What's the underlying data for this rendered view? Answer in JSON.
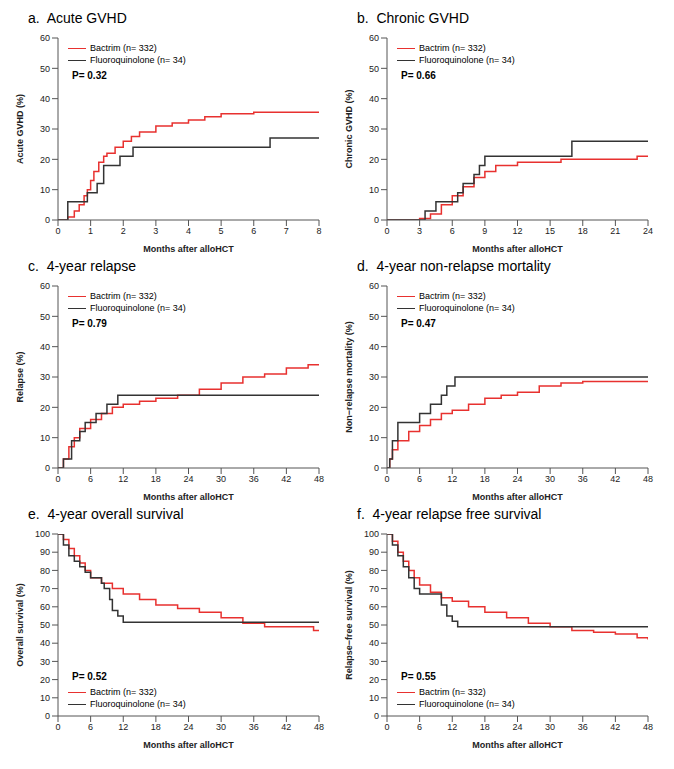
{
  "chart_data": [
    {
      "type": "line",
      "title": "a.  Acute GVHD",
      "xlabel": "Months after alloHCT",
      "ylabel": "Acute GVHD (%)",
      "xlim": [
        0,
        8
      ],
      "xticks": [
        0,
        1,
        2,
        3,
        4,
        5,
        6,
        7,
        8
      ],
      "ylim": [
        0,
        60
      ],
      "yticks": [
        0,
        10,
        20,
        30,
        40,
        50,
        60
      ],
      "grid": false,
      "legend": "upper left",
      "annotation": "P= 0.32",
      "series": [
        {
          "name": "Bactrim (n= 332)",
          "color": "#e8312f",
          "line_style": "step",
          "marker": "none",
          "x": [
            0,
            0.3,
            0.5,
            0.65,
            0.8,
            0.9,
            1,
            1.1,
            1.25,
            1.4,
            1.5,
            1.75,
            2,
            2.25,
            2.5,
            3,
            3.5,
            4,
            4.5,
            5,
            6,
            8
          ],
          "values": [
            0,
            1,
            3,
            5,
            8,
            10,
            13,
            16,
            19,
            21,
            22,
            24,
            26,
            27.5,
            29,
            31,
            32,
            33,
            34,
            35,
            35.5,
            35.5
          ]
        },
        {
          "name": "Fluoroquinolone (n= 34)",
          "color": "#333333",
          "line_style": "step",
          "marker": "none",
          "x": [
            0,
            0.3,
            0.9,
            1.2,
            1.4,
            1.9,
            2.3,
            6.5,
            8
          ],
          "values": [
            0,
            6,
            9,
            12,
            18,
            21,
            24,
            27,
            27
          ]
        }
      ]
    },
    {
      "type": "line",
      "title": "b.  Chronic GVHD",
      "xlabel": "Months after alloHCT",
      "ylabel": "Chronic GVHD (%)",
      "xlim": [
        0,
        24
      ],
      "xticks": [
        0,
        3,
        6,
        9,
        12,
        15,
        18,
        21,
        24
      ],
      "ylim": [
        0,
        60
      ],
      "yticks": [
        0,
        10,
        20,
        30,
        40,
        50,
        60
      ],
      "grid": false,
      "legend": "upper left",
      "annotation": "P= 0.66",
      "series": [
        {
          "name": "Bactrim (n= 332)",
          "color": "#e8312f",
          "line_style": "step",
          "marker": "none",
          "x": [
            0,
            3,
            4,
            5,
            6,
            7,
            8,
            9,
            10,
            12,
            16,
            23,
            24
          ],
          "values": [
            0,
            0.5,
            2,
            5,
            8,
            11,
            14,
            16,
            18,
            19,
            20,
            21,
            21
          ]
        },
        {
          "name": "Fluoroquinolone (n= 34)",
          "color": "#333333",
          "line_style": "step",
          "marker": "none",
          "x": [
            0,
            3.5,
            4.5,
            6.5,
            7,
            8,
            8.5,
            9,
            17,
            24
          ],
          "values": [
            0,
            3,
            6,
            9,
            12,
            15,
            18,
            21,
            26,
            26
          ]
        }
      ]
    },
    {
      "type": "line",
      "title": "c.  4-year relapse",
      "xlabel": "Months after alloHCT",
      "ylabel": "Relapse (%)",
      "xlim": [
        0,
        48
      ],
      "xticks": [
        0,
        6,
        12,
        18,
        24,
        30,
        36,
        42,
        48
      ],
      "ylim": [
        0,
        60
      ],
      "yticks": [
        0,
        10,
        20,
        30,
        40,
        50,
        60
      ],
      "grid": false,
      "legend": "upper left",
      "annotation": "P= 0.79",
      "series": [
        {
          "name": "Bactrim (n= 332)",
          "color": "#e8312f",
          "line_style": "step",
          "marker": "none",
          "x": [
            0,
            1,
            2,
            3,
            4,
            6,
            8,
            10,
            12,
            15,
            18,
            22,
            26,
            30,
            34,
            38,
            42,
            46,
            48
          ],
          "values": [
            0,
            3,
            7,
            10,
            13,
            16,
            18,
            20,
            21,
            22,
            23,
            24,
            26,
            28,
            30,
            31,
            33,
            34,
            34
          ]
        },
        {
          "name": "Fluoroquinolone (n= 34)",
          "color": "#333333",
          "line_style": "step",
          "marker": "none",
          "x": [
            0,
            1,
            2.5,
            4,
            5,
            7,
            9,
            11,
            48
          ],
          "values": [
            0,
            3,
            9,
            12,
            15,
            18,
            21,
            24,
            24
          ]
        }
      ]
    },
    {
      "type": "line",
      "title": "d.  4-year non-relapse mortality",
      "xlabel": "Months after alloHCT",
      "ylabel": "Non−relapse mortality (%)",
      "xlim": [
        0,
        48
      ],
      "xticks": [
        0,
        6,
        12,
        18,
        24,
        30,
        36,
        42,
        48
      ],
      "ylim": [
        0,
        60
      ],
      "yticks": [
        0,
        10,
        20,
        30,
        40,
        50,
        60
      ],
      "grid": false,
      "legend": "upper left",
      "annotation": "P= 0.47",
      "series": [
        {
          "name": "Bactrim (n= 332)",
          "color": "#e8312f",
          "line_style": "step",
          "marker": "none",
          "x": [
            0,
            0.5,
            1,
            2,
            4,
            6,
            8,
            10,
            12,
            15,
            18,
            21,
            24,
            28,
            32,
            36,
            48
          ],
          "values": [
            0,
            3,
            6,
            9,
            12,
            14,
            16,
            18,
            19,
            21,
            23,
            24,
            25,
            27,
            28,
            28.5,
            28.5
          ]
        },
        {
          "name": "Fluoroquinolone (n= 34)",
          "color": "#333333",
          "line_style": "step",
          "marker": "none",
          "x": [
            0,
            0.5,
            1,
            2,
            6,
            8,
            10,
            11,
            12.5,
            48
          ],
          "values": [
            0,
            3,
            9,
            15,
            18,
            21,
            24,
            27,
            30,
            30
          ]
        }
      ]
    },
    {
      "type": "line",
      "title": "e.  4-year overall survival",
      "xlabel": "Months after alloHCT",
      "ylabel": "Overall survival (%)",
      "xlim": [
        0,
        48
      ],
      "xticks": [
        0,
        6,
        12,
        18,
        24,
        30,
        36,
        42,
        48
      ],
      "ylim": [
        0,
        100
      ],
      "yticks": [
        0,
        10,
        20,
        30,
        40,
        50,
        60,
        70,
        80,
        90,
        100
      ],
      "grid": false,
      "legend": "lower left",
      "annotation": "P= 0.52",
      "series": [
        {
          "name": "Bactrim (n= 332)",
          "color": "#e8312f",
          "line_style": "step",
          "marker": "none",
          "x": [
            0,
            1,
            2,
            3,
            4,
            5,
            6,
            8,
            10,
            12,
            15,
            18,
            22,
            26,
            30,
            34,
            38,
            44,
            47,
            48
          ],
          "values": [
            100,
            97,
            92,
            88,
            84,
            80,
            76,
            73,
            70,
            67,
            64,
            61,
            59,
            57,
            54,
            51,
            49,
            49,
            47,
            47
          ]
        },
        {
          "name": "Fluoroquinolone (n= 34)",
          "color": "#333333",
          "line_style": "step",
          "marker": "none",
          "x": [
            0,
            1,
            2,
            3,
            4,
            5,
            6,
            8,
            8.5,
            9.5,
            10,
            11,
            12,
            48
          ],
          "values": [
            100,
            94,
            88,
            85,
            82,
            79,
            76,
            73,
            70,
            64,
            58,
            55,
            51.5,
            51.5
          ]
        }
      ]
    },
    {
      "type": "line",
      "title": "f.  4-year relapse free survival",
      "xlabel": "Months after alloHCT",
      "ylabel": "Relapse−free survival (%)",
      "xlim": [
        0,
        48
      ],
      "xticks": [
        0,
        6,
        12,
        18,
        24,
        30,
        36,
        42,
        48
      ],
      "ylim": [
        0,
        100
      ],
      "yticks": [
        0,
        10,
        20,
        30,
        40,
        50,
        60,
        70,
        80,
        90,
        100
      ],
      "grid": false,
      "legend": "lower left",
      "annotation": "P= 0.55",
      "series": [
        {
          "name": "Bactrim (n= 332)",
          "color": "#e8312f",
          "line_style": "step",
          "marker": "none",
          "x": [
            0,
            1,
            2,
            3,
            4,
            5,
            6,
            8,
            10,
            12,
            15,
            18,
            22,
            26,
            30,
            34,
            38,
            42,
            46,
            48
          ],
          "values": [
            100,
            96,
            90,
            85,
            80,
            76,
            72,
            68,
            65,
            63,
            60,
            57,
            54,
            51,
            49,
            47,
            46,
            45,
            43,
            42
          ]
        },
        {
          "name": "Fluoroquinolone (n= 34)",
          "color": "#333333",
          "line_style": "step",
          "marker": "none",
          "x": [
            0,
            1,
            2,
            3,
            4,
            5,
            6,
            9,
            10,
            11,
            12,
            13,
            48
          ],
          "values": [
            100,
            94,
            88,
            82,
            76,
            70,
            67,
            67,
            61,
            55,
            52,
            49,
            49
          ]
        }
      ]
    }
  ]
}
